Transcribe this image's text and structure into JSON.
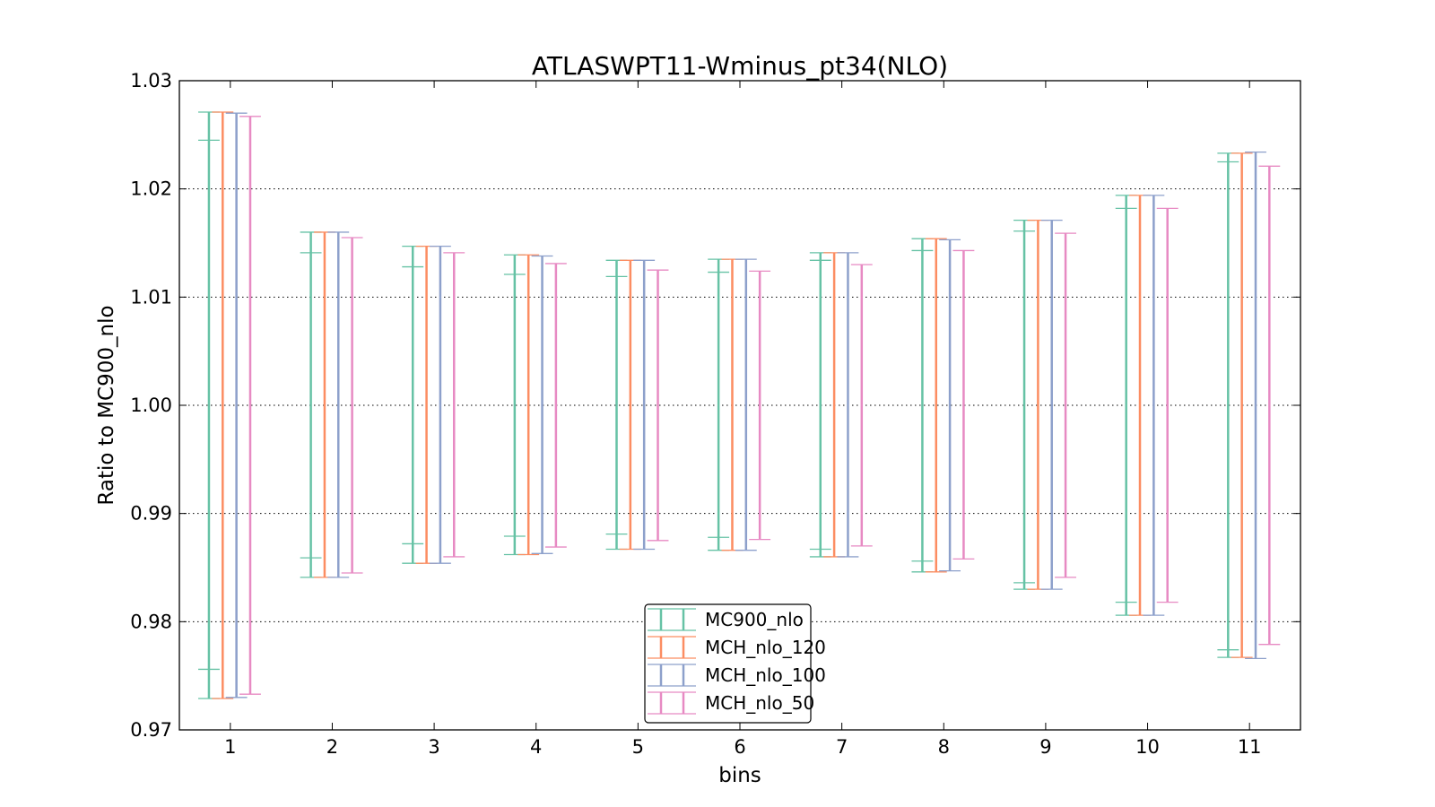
{
  "chart_data": {
    "type": "errorbar",
    "title": "ATLASWPT11-Wminus_pt34(NLO)",
    "xlabel": "bins",
    "ylabel": "Ratio to MC900_nlo",
    "ylim": [
      0.97,
      1.03
    ],
    "xlim": [
      0.5,
      11.5
    ],
    "yticks": [
      "0.97",
      "0.98",
      "0.99",
      "1.00",
      "1.01",
      "1.02",
      "1.03"
    ],
    "xticks": [
      "1",
      "2",
      "3",
      "4",
      "5",
      "6",
      "7",
      "8",
      "9",
      "10",
      "11"
    ],
    "grid": "horizontal dotted",
    "legend_position": "bottom-center",
    "series": [
      {
        "name": "MC900_nlo",
        "color": "#66c2a5",
        "lower": [
          0.9729,
          0.9841,
          0.9854,
          0.9862,
          0.9867,
          0.9866,
          0.986,
          0.9846,
          0.983,
          0.9806,
          0.9767
        ],
        "upper": [
          1.0271,
          1.016,
          1.0147,
          1.0139,
          1.0134,
          1.0135,
          1.0141,
          1.0154,
          1.0171,
          1.0194,
          1.0233
        ],
        "inner_lower": [
          0.9756,
          0.9859,
          0.9872,
          0.9879,
          0.9881,
          0.9878,
          0.9867,
          0.9856,
          0.9836,
          0.9818,
          0.9774
        ],
        "inner_upper": [
          1.0245,
          1.0141,
          1.0128,
          1.0121,
          1.0119,
          1.0123,
          1.0134,
          1.0143,
          1.0161,
          1.0182,
          1.0225
        ]
      },
      {
        "name": "MCH_nlo_120",
        "color": "#fc8d62",
        "lower": [
          0.9729,
          0.9841,
          0.9854,
          0.9862,
          0.9867,
          0.9866,
          0.986,
          0.9846,
          0.983,
          0.9806,
          0.9767
        ],
        "upper": [
          1.0271,
          1.016,
          1.0147,
          1.0139,
          1.0134,
          1.0135,
          1.0141,
          1.0154,
          1.0171,
          1.0194,
          1.0233
        ]
      },
      {
        "name": "MCH_nlo_100",
        "color": "#8da0cb",
        "lower": [
          0.973,
          0.9841,
          0.9854,
          0.9863,
          0.9867,
          0.9866,
          0.986,
          0.9847,
          0.983,
          0.9806,
          0.9766
        ],
        "upper": [
          1.027,
          1.016,
          1.0147,
          1.0138,
          1.0134,
          1.0135,
          1.0141,
          1.0153,
          1.0171,
          1.0194,
          1.0234
        ]
      },
      {
        "name": "MCH_nlo_50",
        "color": "#e78ac3",
        "lower": [
          0.9733,
          0.9845,
          0.986,
          0.9869,
          0.9875,
          0.9876,
          0.987,
          0.9858,
          0.9841,
          0.9818,
          0.9779
        ],
        "upper": [
          1.0267,
          1.0155,
          1.0141,
          1.0131,
          1.0125,
          1.0124,
          1.013,
          1.0143,
          1.0159,
          1.0182,
          1.0221
        ]
      }
    ]
  }
}
